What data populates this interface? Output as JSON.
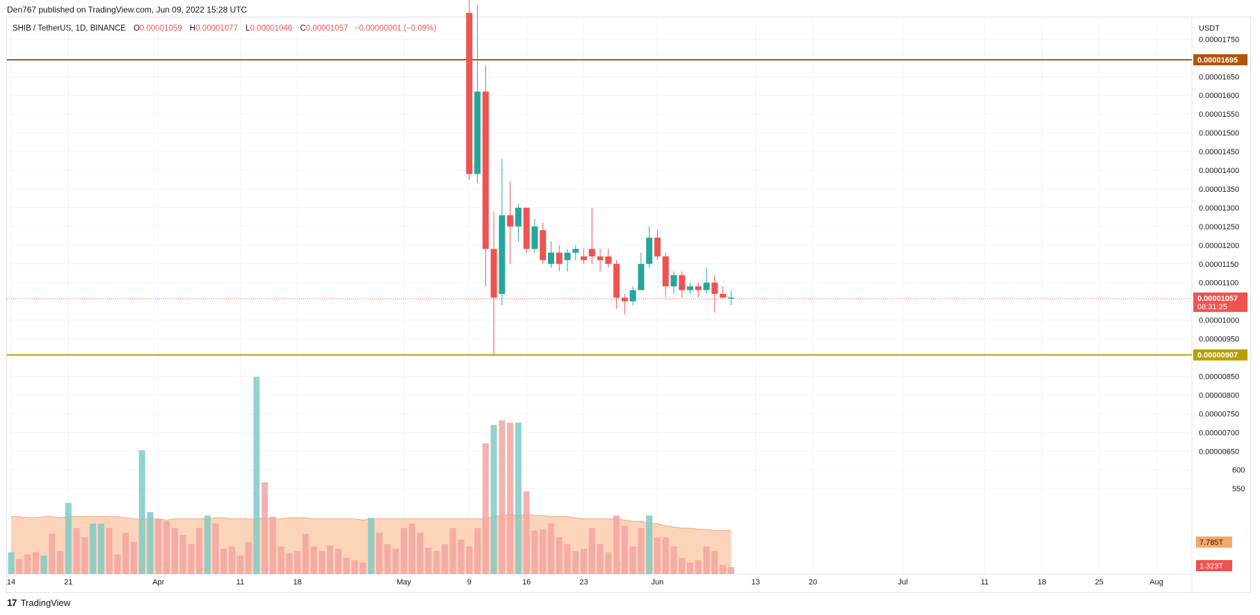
{
  "header": {
    "publish_text": "Den767 published on TradingView.com, Jun 09, 2022 15:28 UTC"
  },
  "legend": {
    "symbol": "SHIB / TetherUS, 1D, BINANCE",
    "o_label": "O",
    "o_value": "0.00001059",
    "h_label": "H",
    "h_value": "0.00001077",
    "l_label": "L",
    "l_value": "0.00001046",
    "c_label": "C",
    "c_value": "0.00001057",
    "change": "−0.00000001 (−0.09%)"
  },
  "footer": {
    "brand": "TradingView",
    "logo_text": "17"
  },
  "colors": {
    "up": "#26a69a",
    "down": "#ef5350",
    "resistance": "#b45309",
    "support": "#b8a000",
    "volume_up": "#7ecbc4",
    "volume_down": "#f5a3a1",
    "volume_ma_fill": "#fbc9a8",
    "volume_ma_line": "#f4a578",
    "grid": "#f0f3fa",
    "last_price": "#ef5350"
  },
  "chart_data": {
    "type": "candlestick",
    "symbol": "SHIB / TetherUS",
    "interval": "1D",
    "exchange": "BINANCE",
    "currency_label": "USDT",
    "y_range": [
      8.3e-06,
      1.84e-05
    ],
    "y_ticks": [
      "0.00001750",
      "0.00001650",
      "0.00001600",
      "0.00001550",
      "0.00001500",
      "0.00001450",
      "0.00001400",
      "0.00001350",
      "0.00001300",
      "0.00001250",
      "0.00001200",
      "0.00001150",
      "0.00001100",
      "0.00001000",
      "0.00000950",
      "0.00000850",
      "0.00000800",
      "0.00000750",
      "0.00000700",
      "0.00000650",
      "600",
      "550"
    ],
    "y_tick_values": [
      1.75e-05,
      1.65e-05,
      1.6e-05,
      1.55e-05,
      1.5e-05,
      1.45e-05,
      1.4e-05,
      1.35e-05,
      1.3e-05,
      1.25e-05,
      1.2e-05,
      1.15e-05,
      1.1e-05,
      1e-05,
      9.5e-06,
      8.5e-06,
      8e-06,
      7.5e-06,
      7e-06,
      6.5e-06,
      6e-06,
      5.5e-06
    ],
    "x_ticks": [
      {
        "label": "14",
        "day": 0
      },
      {
        "label": "21",
        "day": 7
      },
      {
        "label": "Apr",
        "day": 18
      },
      {
        "label": "11",
        "day": 28
      },
      {
        "label": "18",
        "day": 35
      },
      {
        "label": "May",
        "day": 48
      },
      {
        "label": "9",
        "day": 56
      },
      {
        "label": "16",
        "day": 63
      },
      {
        "label": "23",
        "day": 70
      },
      {
        "label": "Jun",
        "day": 79
      },
      {
        "label": "13",
        "day": 91
      },
      {
        "label": "20",
        "day": 98
      },
      {
        "label": "Jul",
        "day": 109
      },
      {
        "label": "11",
        "day": 119
      },
      {
        "label": "18",
        "day": 126
      },
      {
        "label": "25",
        "day": 133
      },
      {
        "label": "Aug",
        "day": 140
      }
    ],
    "horizontal_lines": [
      {
        "value": "0.00001695",
        "price": 1.695e-05,
        "kind": "resistance"
      },
      {
        "value": "0.00000907",
        "price": 9.07e-06,
        "kind": "support"
      }
    ],
    "last_price": {
      "value": "0.00001057",
      "price": 1.057e-05,
      "countdown": "08:31:25"
    },
    "volume_labels": [
      {
        "value": "7.785T",
        "kind": "ma"
      },
      {
        "value": "1.323T",
        "kind": "last"
      }
    ],
    "candles": [
      {
        "day": 56,
        "o": 1.82e-05,
        "h": 1.87e-05,
        "l": 1.375e-05,
        "c": 1.39e-05
      },
      {
        "day": 57,
        "o": 1.39e-05,
        "h": 1.84e-05,
        "l": 1.365e-05,
        "c": 1.61e-05
      },
      {
        "day": 58,
        "o": 1.61e-05,
        "h": 1.68e-05,
        "l": 1.09e-05,
        "c": 1.19e-05
      },
      {
        "day": 59,
        "o": 1.19e-05,
        "h": 1.29e-05,
        "l": 9.07e-06,
        "c": 1.06e-05
      },
      {
        "day": 60,
        "o": 1.07e-05,
        "h": 1.43e-05,
        "l": 1.04e-05,
        "c": 1.28e-05
      },
      {
        "day": 61,
        "o": 1.28e-05,
        "h": 1.37e-05,
        "l": 1.15e-05,
        "c": 1.25e-05
      },
      {
        "day": 62,
        "o": 1.25e-05,
        "h": 1.31e-05,
        "l": 1.21e-05,
        "c": 1.3e-05
      },
      {
        "day": 63,
        "o": 1.3e-05,
        "h": 1.3e-05,
        "l": 1.18e-05,
        "c": 1.19e-05
      },
      {
        "day": 64,
        "o": 1.19e-05,
        "h": 1.27e-05,
        "l": 1.18e-05,
        "c": 1.25e-05
      },
      {
        "day": 65,
        "o": 1.24e-05,
        "h": 1.26e-05,
        "l": 1.15e-05,
        "c": 1.16e-05
      },
      {
        "day": 66,
        "o": 1.15e-05,
        "h": 1.21e-05,
        "l": 1.14e-05,
        "c": 1.18e-05
      },
      {
        "day": 67,
        "o": 1.18e-05,
        "h": 1.2e-05,
        "l": 1.13e-05,
        "c": 1.15e-05
      },
      {
        "day": 68,
        "o": 1.16e-05,
        "h": 1.19e-05,
        "l": 1.13e-05,
        "c": 1.18e-05
      },
      {
        "day": 69,
        "o": 1.18e-05,
        "h": 1.2e-05,
        "l": 1.16e-05,
        "c": 1.19e-05
      },
      {
        "day": 70,
        "o": 1.17e-05,
        "h": 1.19e-05,
        "l": 1.15e-05,
        "c": 1.16e-05
      },
      {
        "day": 71,
        "o": 1.19e-05,
        "h": 1.3e-05,
        "l": 1.15e-05,
        "c": 1.17e-05
      },
      {
        "day": 72,
        "o": 1.17e-05,
        "h": 1.19e-05,
        "l": 1.13e-05,
        "c": 1.16e-05
      },
      {
        "day": 73,
        "o": 1.17e-05,
        "h": 1.19e-05,
        "l": 1.14e-05,
        "c": 1.15e-05
      },
      {
        "day": 74,
        "o": 1.15e-05,
        "h": 1.16e-05,
        "l": 1.03e-05,
        "c": 1.06e-05
      },
      {
        "day": 75,
        "o": 1.06e-05,
        "h": 1.07e-05,
        "l": 1.015e-05,
        "c": 1.05e-05
      },
      {
        "day": 76,
        "o": 1.05e-05,
        "h": 1.09e-05,
        "l": 1.04e-05,
        "c": 1.08e-05
      },
      {
        "day": 77,
        "o": 1.08e-05,
        "h": 1.18e-05,
        "l": 1.08e-05,
        "c": 1.15e-05
      },
      {
        "day": 78,
        "o": 1.15e-05,
        "h": 1.25e-05,
        "l": 1.14e-05,
        "c": 1.22e-05
      },
      {
        "day": 79,
        "o": 1.22e-05,
        "h": 1.24e-05,
        "l": 1.16e-05,
        "c": 1.17e-05
      },
      {
        "day": 80,
        "o": 1.17e-05,
        "h": 1.18e-05,
        "l": 1.06e-05,
        "c": 1.09e-05
      },
      {
        "day": 81,
        "o": 1.09e-05,
        "h": 1.13e-05,
        "l": 1.07e-05,
        "c": 1.12e-05
      },
      {
        "day": 82,
        "o": 1.12e-05,
        "h": 1.13e-05,
        "l": 1.06e-05,
        "c": 1.08e-05
      },
      {
        "day": 83,
        "o": 1.08e-05,
        "h": 1.1e-05,
        "l": 1.07e-05,
        "c": 1.09e-05
      },
      {
        "day": 84,
        "o": 1.09e-05,
        "h": 1.1e-05,
        "l": 1.06e-05,
        "c": 1.08e-05
      },
      {
        "day": 85,
        "o": 1.08e-05,
        "h": 1.14e-05,
        "l": 1.07e-05,
        "c": 1.1e-05
      },
      {
        "day": 86,
        "o": 1.1e-05,
        "h": 1.12e-05,
        "l": 1.02e-05,
        "c": 1.07e-05
      },
      {
        "day": 87,
        "o": 1.07e-05,
        "h": 1.09e-05,
        "l": 1.06e-05,
        "c": 1.06e-05
      },
      {
        "day": 88,
        "o": 1.06e-05,
        "h": 1.08e-05,
        "l": 1.04e-05,
        "c": 1.06e-05
      }
    ],
    "volume_y_range": [
      0,
      1
    ],
    "volume": [
      {
        "day": 0,
        "v": 0.095,
        "up": true
      },
      {
        "day": 1,
        "v": 0.065,
        "up": false
      },
      {
        "day": 2,
        "v": 0.085,
        "up": false
      },
      {
        "day": 3,
        "v": 0.095,
        "up": false
      },
      {
        "day": 4,
        "v": 0.08,
        "up": true
      },
      {
        "day": 5,
        "v": 0.175,
        "up": false
      },
      {
        "day": 6,
        "v": 0.1,
        "up": false
      },
      {
        "day": 7,
        "v": 0.31,
        "up": true
      },
      {
        "day": 8,
        "v": 0.2,
        "up": false
      },
      {
        "day": 9,
        "v": 0.16,
        "up": false
      },
      {
        "day": 10,
        "v": 0.22,
        "up": true
      },
      {
        "day": 11,
        "v": 0.22,
        "up": true
      },
      {
        "day": 12,
        "v": 0.2,
        "up": false
      },
      {
        "day": 13,
        "v": 0.085,
        "up": false
      },
      {
        "day": 14,
        "v": 0.18,
        "up": false
      },
      {
        "day": 15,
        "v": 0.14,
        "up": false
      },
      {
        "day": 16,
        "v": 0.54,
        "up": true
      },
      {
        "day": 17,
        "v": 0.27,
        "up": true
      },
      {
        "day": 18,
        "v": 0.24,
        "up": false
      },
      {
        "day": 19,
        "v": 0.23,
        "up": false
      },
      {
        "day": 20,
        "v": 0.2,
        "up": false
      },
      {
        "day": 21,
        "v": 0.17,
        "up": false
      },
      {
        "day": 22,
        "v": 0.13,
        "up": false
      },
      {
        "day": 23,
        "v": 0.2,
        "up": false
      },
      {
        "day": 24,
        "v": 0.255,
        "up": true
      },
      {
        "day": 25,
        "v": 0.22,
        "up": false
      },
      {
        "day": 26,
        "v": 0.11,
        "up": false
      },
      {
        "day": 27,
        "v": 0.12,
        "up": false
      },
      {
        "day": 28,
        "v": 0.08,
        "up": false
      },
      {
        "day": 29,
        "v": 0.14,
        "up": false
      },
      {
        "day": 30,
        "v": 0.86,
        "up": true
      },
      {
        "day": 31,
        "v": 0.4,
        "up": false
      },
      {
        "day": 32,
        "v": 0.25,
        "up": false
      },
      {
        "day": 33,
        "v": 0.12,
        "up": false
      },
      {
        "day": 34,
        "v": 0.09,
        "up": false
      },
      {
        "day": 35,
        "v": 0.1,
        "up": false
      },
      {
        "day": 36,
        "v": 0.175,
        "up": false
      },
      {
        "day": 37,
        "v": 0.12,
        "up": false
      },
      {
        "day": 38,
        "v": 0.1,
        "up": false
      },
      {
        "day": 39,
        "v": 0.125,
        "up": false
      },
      {
        "day": 40,
        "v": 0.11,
        "up": false
      },
      {
        "day": 41,
        "v": 0.07,
        "up": false
      },
      {
        "day": 42,
        "v": 0.06,
        "up": false
      },
      {
        "day": 43,
        "v": 0.05,
        "up": false
      },
      {
        "day": 44,
        "v": 0.245,
        "up": true
      },
      {
        "day": 45,
        "v": 0.18,
        "up": false
      },
      {
        "day": 46,
        "v": 0.13,
        "up": false
      },
      {
        "day": 47,
        "v": 0.11,
        "up": false
      },
      {
        "day": 48,
        "v": 0.2,
        "up": false
      },
      {
        "day": 49,
        "v": 0.22,
        "up": false
      },
      {
        "day": 50,
        "v": 0.18,
        "up": false
      },
      {
        "day": 51,
        "v": 0.115,
        "up": false
      },
      {
        "day": 52,
        "v": 0.1,
        "up": false
      },
      {
        "day": 53,
        "v": 0.13,
        "up": false
      },
      {
        "day": 54,
        "v": 0.2,
        "up": false
      },
      {
        "day": 55,
        "v": 0.15,
        "up": false
      },
      {
        "day": 56,
        "v": 0.12,
        "up": false
      },
      {
        "day": 57,
        "v": 0.2,
        "up": false
      },
      {
        "day": 58,
        "v": 0.57,
        "up": false
      },
      {
        "day": 59,
        "v": 0.65,
        "up": true
      },
      {
        "day": 60,
        "v": 0.67,
        "up": false
      },
      {
        "day": 61,
        "v": 0.66,
        "up": false
      },
      {
        "day": 62,
        "v": 0.66,
        "up": true
      },
      {
        "day": 63,
        "v": 0.36,
        "up": false
      },
      {
        "day": 64,
        "v": 0.19,
        "up": false
      },
      {
        "day": 65,
        "v": 0.195,
        "up": false
      },
      {
        "day": 66,
        "v": 0.22,
        "up": false
      },
      {
        "day": 67,
        "v": 0.16,
        "up": false
      },
      {
        "day": 68,
        "v": 0.13,
        "up": false
      },
      {
        "day": 69,
        "v": 0.1,
        "up": false
      },
      {
        "day": 70,
        "v": 0.11,
        "up": false
      },
      {
        "day": 71,
        "v": 0.2,
        "up": false
      },
      {
        "day": 72,
        "v": 0.13,
        "up": false
      },
      {
        "day": 73,
        "v": 0.095,
        "up": false
      },
      {
        "day": 74,
        "v": 0.255,
        "up": false
      },
      {
        "day": 75,
        "v": 0.21,
        "up": false
      },
      {
        "day": 76,
        "v": 0.12,
        "up": false
      },
      {
        "day": 77,
        "v": 0.2,
        "up": false
      },
      {
        "day": 78,
        "v": 0.255,
        "up": true
      },
      {
        "day": 79,
        "v": 0.16,
        "up": false
      },
      {
        "day": 80,
        "v": 0.16,
        "up": false
      },
      {
        "day": 81,
        "v": 0.12,
        "up": false
      },
      {
        "day": 82,
        "v": 0.07,
        "up": false
      },
      {
        "day": 83,
        "v": 0.05,
        "up": false
      },
      {
        "day": 84,
        "v": 0.06,
        "up": false
      },
      {
        "day": 85,
        "v": 0.12,
        "up": false
      },
      {
        "day": 86,
        "v": 0.1,
        "up": false
      },
      {
        "day": 87,
        "v": 0.04,
        "up": false
      },
      {
        "day": 88,
        "v": 0.03,
        "up": false
      }
    ],
    "volume_ma": [
      0.25,
      0.25,
      0.245,
      0.245,
      0.25,
      0.25,
      0.245,
      0.25,
      0.25,
      0.25,
      0.25,
      0.25,
      0.25,
      0.25,
      0.245,
      0.24,
      0.24,
      0.24,
      0.24,
      0.235,
      0.24,
      0.24,
      0.24,
      0.24,
      0.24,
      0.245,
      0.245,
      0.24,
      0.24,
      0.24,
      0.24,
      0.245,
      0.24,
      0.24,
      0.245,
      0.245,
      0.245,
      0.24,
      0.24,
      0.24,
      0.24,
      0.24,
      0.24,
      0.235,
      0.24,
      0.24,
      0.24,
      0.24,
      0.24,
      0.24,
      0.24,
      0.24,
      0.24,
      0.24,
      0.24,
      0.24,
      0.24,
      0.24,
      0.24,
      0.25,
      0.255,
      0.26,
      0.255,
      0.26,
      0.255,
      0.255,
      0.25,
      0.25,
      0.25,
      0.245,
      0.24,
      0.24,
      0.24,
      0.24,
      0.24,
      0.235,
      0.23,
      0.23,
      0.22,
      0.22,
      0.21,
      0.205,
      0.2,
      0.2,
      0.195,
      0.195,
      0.19,
      0.19,
      0.19
    ],
    "grid": true
  }
}
